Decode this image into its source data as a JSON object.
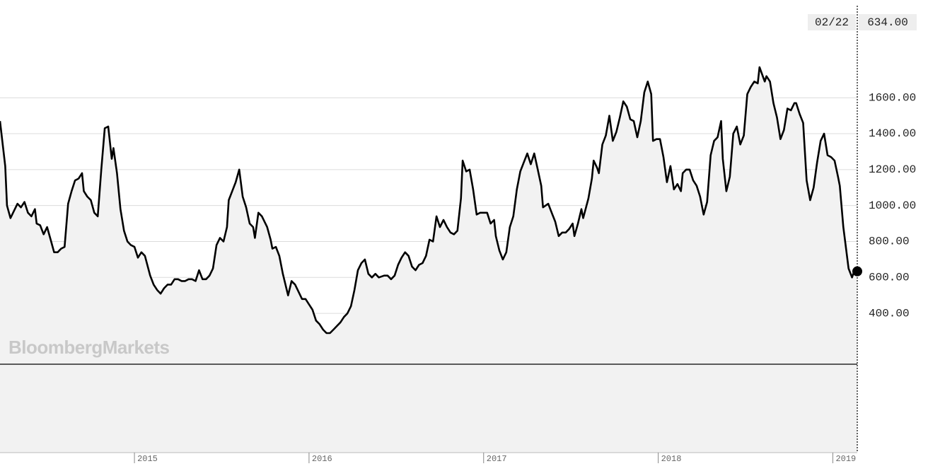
{
  "chart_data": {
    "type": "line",
    "watermark": "BloombergMarkets",
    "color": "#000000",
    "area_color": "#f2f2f2",
    "grid": true,
    "xlim": [
      2014.23,
      2019.14
    ],
    "xticks": [
      2015,
      2016,
      2017,
      2018,
      2019
    ],
    "ylim": [
      117,
      2144
    ],
    "yticks": [
      {
        "value": 400,
        "label": "400.00"
      },
      {
        "value": 600,
        "label": "600.00"
      },
      {
        "value": 800,
        "label": "800.00"
      },
      {
        "value": 1000,
        "label": "1000.00"
      },
      {
        "value": 1200,
        "label": "1200.00"
      },
      {
        "value": 1400,
        "label": "1400.00"
      },
      {
        "value": 1600,
        "label": "1600.00"
      }
    ],
    "last_point": {
      "date": "02/22",
      "value": 634,
      "label": "634.00"
    },
    "x": [
      2014.23,
      2014.26,
      2014.27,
      2014.29,
      2014.31,
      2014.33,
      2014.35,
      2014.37,
      2014.39,
      2014.41,
      2014.43,
      2014.44,
      2014.46,
      2014.48,
      2014.5,
      2014.52,
      2014.54,
      2014.56,
      2014.58,
      2014.6,
      2014.62,
      2014.64,
      2014.66,
      2014.68,
      2014.7,
      2014.71,
      2014.73,
      2014.75,
      2014.77,
      2014.79,
      2014.81,
      2014.83,
      2014.85,
      2014.87,
      2014.88,
      2014.9,
      2014.92,
      2014.94,
      2014.96,
      2014.98,
      2015.0,
      2015.02,
      2015.04,
      2015.06,
      2015.09,
      2015.11,
      2015.13,
      2015.15,
      2015.17,
      2015.19,
      2015.21,
      2015.23,
      2015.25,
      2015.27,
      2015.29,
      2015.31,
      2015.33,
      2015.35,
      2015.37,
      2015.39,
      2015.41,
      2015.43,
      2015.45,
      2015.47,
      2015.49,
      2015.51,
      2015.53,
      2015.54,
      2015.56,
      2015.58,
      2015.6,
      2015.62,
      2015.64,
      2015.66,
      2015.68,
      2015.69,
      2015.71,
      2015.73,
      2015.76,
      2015.78,
      2015.79,
      2015.81,
      2015.83,
      2015.85,
      2015.88,
      2015.9,
      2015.92,
      2015.94,
      2015.96,
      2015.98,
      2016.0,
      2016.02,
      2016.04,
      2016.06,
      2016.08,
      2016.1,
      2016.12,
      2016.14,
      2016.16,
      2016.18,
      2016.2,
      2016.22,
      2016.24,
      2016.26,
      2016.28,
      2016.3,
      2016.32,
      2016.34,
      2016.36,
      2016.38,
      2016.4,
      2016.43,
      2016.45,
      2016.47,
      2016.49,
      2016.51,
      2016.53,
      2016.55,
      2016.57,
      2016.59,
      2016.61,
      2016.63,
      2016.65,
      2016.67,
      2016.69,
      2016.71,
      2016.73,
      2016.75,
      2016.77,
      2016.79,
      2016.81,
      2016.83,
      2016.85,
      2016.87,
      2016.88,
      2016.9,
      2016.92,
      2016.94,
      2016.96,
      2016.98,
      2017.0,
      2017.02,
      2017.04,
      2017.06,
      2017.07,
      2017.09,
      2017.11,
      2017.13,
      2017.15,
      2017.17,
      2017.19,
      2017.21,
      2017.23,
      2017.25,
      2017.27,
      2017.29,
      2017.31,
      2017.33,
      2017.34,
      2017.37,
      2017.39,
      2017.41,
      2017.43,
      2017.45,
      2017.47,
      2017.49,
      2017.51,
      2017.52,
      2017.54,
      2017.56,
      2017.57,
      2017.6,
      2017.62,
      2017.63,
      2017.65,
      2017.66,
      2017.68,
      2017.7,
      2017.72,
      2017.74,
      2017.76,
      2017.78,
      2017.8,
      2017.82,
      2017.84,
      2017.86,
      2017.88,
      2017.9,
      2017.92,
      2017.94,
      2017.96,
      2017.97,
      2017.99,
      2018.01,
      2018.03,
      2018.05,
      2018.07,
      2018.09,
      2018.11,
      2018.13,
      2018.14,
      2018.16,
      2018.18,
      2018.2,
      2018.22,
      2018.24,
      2018.26,
      2018.28,
      2018.3,
      2018.32,
      2018.34,
      2018.36,
      2018.37,
      2018.39,
      2018.41,
      2018.43,
      2018.45,
      2018.47,
      2018.49,
      2018.51,
      2018.53,
      2018.55,
      2018.57,
      2018.58,
      2018.61,
      2018.62,
      2018.64,
      2018.66,
      2018.68,
      2018.7,
      2018.72,
      2018.74,
      2018.76,
      2018.78,
      2018.79,
      2018.81,
      2018.83,
      2018.85,
      2018.87,
      2018.89,
      2018.91,
      2018.93,
      2018.95,
      2018.97,
      2018.99,
      2019.01,
      2019.03,
      2019.04,
      2019.06,
      2019.09,
      2019.11,
      2019.12,
      2019.14
    ],
    "values": [
      1470,
      1220,
      1000,
      930,
      970,
      1010,
      990,
      1020,
      960,
      940,
      980,
      900,
      890,
      840,
      880,
      810,
      740,
      740,
      760,
      770,
      1010,
      1080,
      1140,
      1150,
      1180,
      1080,
      1050,
      1030,
      960,
      940,
      1200,
      1430,
      1440,
      1260,
      1320,
      1180,
      980,
      860,
      800,
      780,
      770,
      710,
      740,
      720,
      610,
      560,
      530,
      510,
      540,
      560,
      560,
      590,
      590,
      580,
      580,
      590,
      590,
      580,
      640,
      590,
      590,
      610,
      650,
      780,
      820,
      800,
      880,
      1030,
      1080,
      1130,
      1200,
      1050,
      990,
      900,
      880,
      820,
      960,
      940,
      880,
      810,
      760,
      770,
      720,
      620,
      500,
      580,
      560,
      520,
      480,
      480,
      450,
      420,
      360,
      340,
      310,
      290,
      290,
      310,
      330,
      350,
      380,
      400,
      440,
      530,
      640,
      680,
      700,
      620,
      600,
      620,
      600,
      610,
      610,
      590,
      610,
      670,
      710,
      740,
      720,
      660,
      640,
      670,
      680,
      720,
      810,
      800,
      940,
      880,
      920,
      880,
      850,
      840,
      860,
      1040,
      1250,
      1190,
      1200,
      1090,
      950,
      960,
      960,
      960,
      900,
      920,
      830,
      750,
      700,
      740,
      880,
      940,
      1090,
      1190,
      1240,
      1290,
      1230,
      1290,
      1200,
      1110,
      990,
      1010,
      960,
      910,
      830,
      850,
      850,
      870,
      900,
      830,
      900,
      980,
      930,
      1040,
      1150,
      1250,
      1210,
      1180,
      1340,
      1390,
      1500,
      1360,
      1410,
      1490,
      1580,
      1550,
      1480,
      1470,
      1380,
      1470,
      1630,
      1690,
      1620,
      1360,
      1370,
      1370,
      1270,
      1130,
      1220,
      1090,
      1120,
      1080,
      1180,
      1200,
      1200,
      1140,
      1110,
      1050,
      950,
      1020,
      1280,
      1360,
      1380,
      1470,
      1260,
      1080,
      1160,
      1400,
      1440,
      1340,
      1390,
      1620,
      1660,
      1690,
      1680,
      1770,
      1690,
      1720,
      1690,
      1570,
      1490,
      1370,
      1420,
      1540,
      1530,
      1570,
      1570,
      1510,
      1460,
      1140,
      1030,
      1100,
      1240,
      1360,
      1400,
      1280,
      1270,
      1250,
      1160,
      1110,
      880,
      650,
      600,
      630,
      634
    ]
  }
}
